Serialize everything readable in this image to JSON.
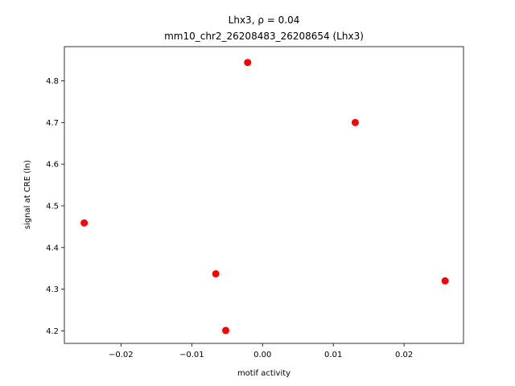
{
  "chart_data": {
    "type": "scatter",
    "title_line1": "Lhx3, ρ = 0.04",
    "title_line2": "mm10_chr2_26208483_26208654 (Lhx3)",
    "xlabel": "motif activity",
    "ylabel": "signal at CRE (ln)",
    "xlim": [
      -0.028,
      0.0284
    ],
    "ylim": [
      4.17,
      4.882
    ],
    "xticks": [
      -0.02,
      -0.01,
      0.0,
      0.01,
      0.02
    ],
    "xtick_labels": [
      "−0.02",
      "−0.01",
      "0.00",
      "0.01",
      "0.02"
    ],
    "yticks": [
      4.2,
      4.3,
      4.4,
      4.5,
      4.6,
      4.7,
      4.8
    ],
    "ytick_labels": [
      "4.2",
      "4.3",
      "4.4",
      "4.5",
      "4.6",
      "4.7",
      "4.8"
    ],
    "marker_color": "#ff0000",
    "grid": false,
    "points": [
      {
        "x": -0.0252,
        "y": 4.459
      },
      {
        "x": -0.0066,
        "y": 4.337
      },
      {
        "x": -0.0052,
        "y": 4.201
      },
      {
        "x": -0.0021,
        "y": 4.844
      },
      {
        "x": 0.0131,
        "y": 4.7
      },
      {
        "x": 0.0258,
        "y": 4.32
      }
    ]
  }
}
